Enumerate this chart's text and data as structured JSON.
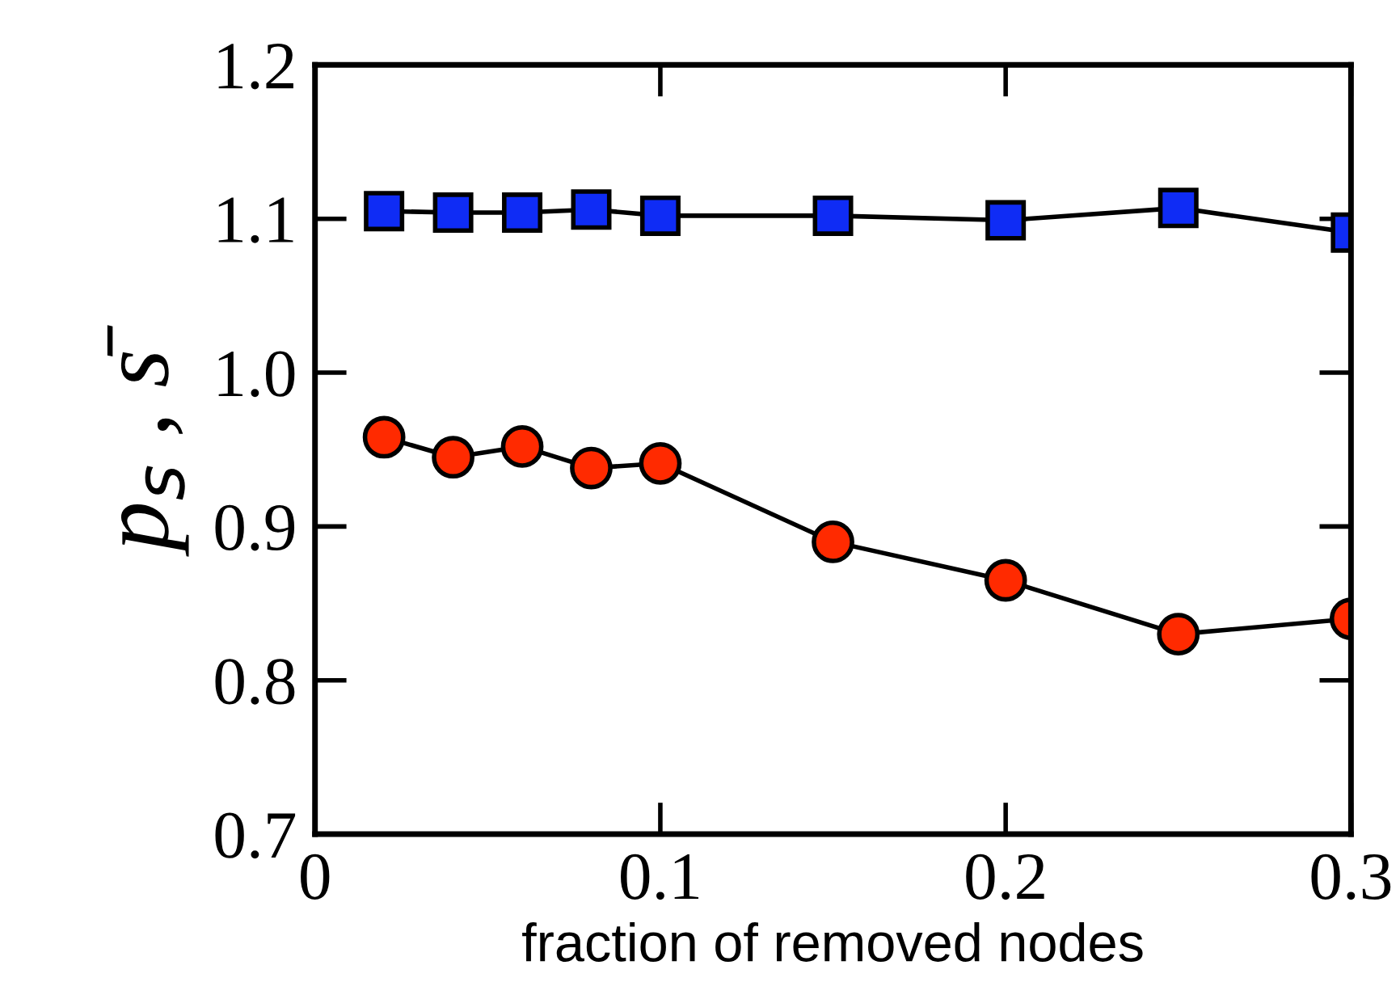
{
  "chart_data": {
    "type": "line",
    "xlabel": "fraction of removed nodes",
    "ylabel": "p$_{s}$ , s̄",
    "xlim": [
      0,
      0.3
    ],
    "xticks": [
      0,
      0.1,
      0.2,
      0.3
    ],
    "ylim": [
      0.7,
      1.2
    ],
    "yticks": [
      0.7,
      0.8,
      0.9,
      {
        "value": 1.0,
        "label": "1.0"
      },
      1.1,
      1.2
    ],
    "grid": false,
    "legend": false,
    "series": [
      {
        "x": [
          0.02,
          0.04,
          0.06,
          0.08,
          0.1,
          0.15,
          0.2,
          0.25,
          0.3
        ],
        "values": [
          1.105,
          1.104,
          1.104,
          1.106,
          1.102,
          1.102,
          1.099,
          1.107,
          1.091
        ],
        "color": "#0f2cf5",
        "marker": "square"
      },
      {
        "x": [
          0.02,
          0.04,
          0.06,
          0.08,
          0.1,
          0.15,
          0.2,
          0.25,
          0.3
        ],
        "values": [
          0.958,
          0.945,
          0.952,
          0.938,
          0.941,
          0.89,
          0.865,
          0.83,
          0.84
        ],
        "color": "#ff2a00",
        "marker": "circle"
      }
    ]
  }
}
